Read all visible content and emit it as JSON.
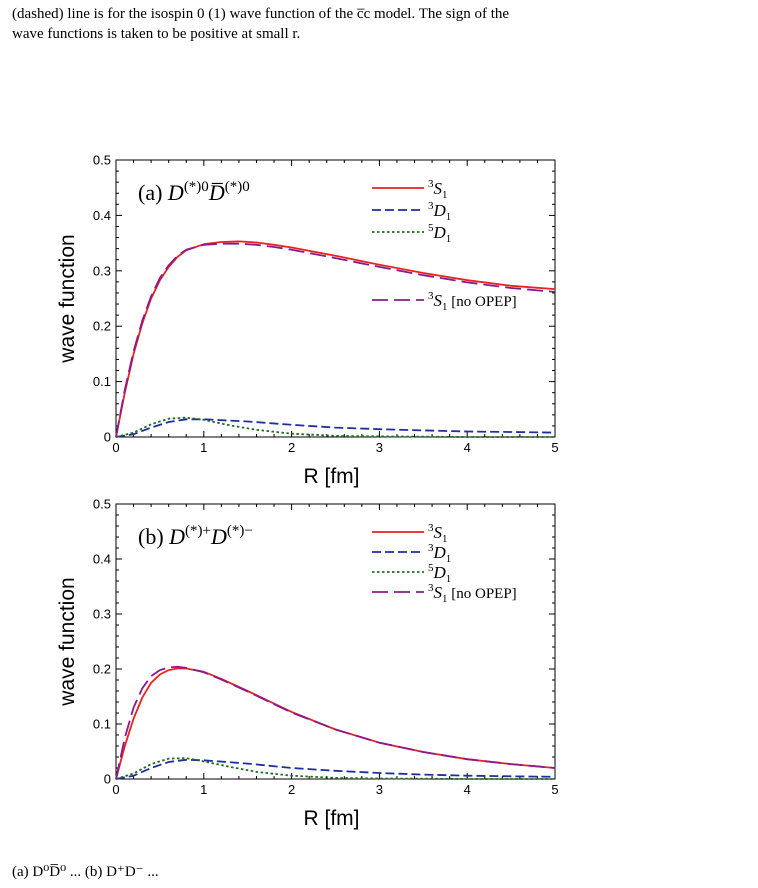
{
  "caption_top": {
    "line1": "(dashed) line is for the isospin 0 (1) wave function of the c̅c model. The sign of the",
    "line2": "wave functions is taken to be positive at small r."
  },
  "caption_bottom": {
    "text": "(a) D⁰D̅⁰ ... (b) D⁺D⁻ ..."
  },
  "chart_data": [
    {
      "type": "line",
      "panel_label": "(a)",
      "title_math": "D(*)0D̅(*)0",
      "xlabel": "R [fm]",
      "ylabel": "wave function",
      "xlim": [
        0,
        5
      ],
      "ylim": [
        0,
        0.5
      ],
      "xticks": [
        "0",
        "1",
        "2",
        "3",
        "4",
        "5"
      ],
      "yticks": [
        "0",
        "0.1",
        "0.2",
        "0.3",
        "0.4",
        "0.5"
      ],
      "legend_position": "top-right",
      "series": [
        {
          "name": "3S1",
          "color": "#e8221f",
          "dash": "solid",
          "x": [
            0,
            0.1,
            0.2,
            0.3,
            0.4,
            0.5,
            0.6,
            0.7,
            0.8,
            1.0,
            1.2,
            1.4,
            1.6,
            1.8,
            2.0,
            2.5,
            3.0,
            3.5,
            4.0,
            4.5,
            5.0
          ],
          "y": [
            0,
            0.08,
            0.15,
            0.205,
            0.25,
            0.283,
            0.307,
            0.325,
            0.337,
            0.348,
            0.352,
            0.353,
            0.351,
            0.347,
            0.342,
            0.327,
            0.311,
            0.296,
            0.283,
            0.273,
            0.267
          ]
        },
        {
          "name": "3D1",
          "color": "#1f2ea0",
          "dash": "dashed",
          "x": [
            0,
            0.2,
            0.4,
            0.6,
            0.8,
            1.0,
            1.5,
            2.0,
            2.5,
            3.0,
            3.5,
            4.0,
            4.5,
            5.0
          ],
          "y": [
            0,
            0.005,
            0.017,
            0.027,
            0.032,
            0.032,
            0.028,
            0.022,
            0.017,
            0.014,
            0.012,
            0.01,
            0.009,
            0.008
          ]
        },
        {
          "name": "5D1",
          "color": "#1f6b1f",
          "dash": "dotted",
          "x": [
            0,
            0.2,
            0.4,
            0.6,
            0.8,
            1.0,
            1.3,
            1.6,
            2.0,
            2.5,
            3.0,
            4.0,
            5.0
          ],
          "y": [
            0,
            0.008,
            0.023,
            0.033,
            0.035,
            0.031,
            0.021,
            0.013,
            0.006,
            0.002,
            0.001,
            0.0,
            0.0
          ]
        },
        {
          "name": "3S1 [no OPEP]",
          "color": "#8a1a8e",
          "dash": "longdash",
          "x": [
            0,
            0.1,
            0.2,
            0.3,
            0.4,
            0.5,
            0.6,
            0.7,
            0.8,
            1.0,
            1.2,
            1.4,
            1.6,
            1.8,
            2.0,
            2.5,
            3.0,
            3.5,
            4.0,
            4.5,
            5.0
          ],
          "y": [
            0,
            0.085,
            0.155,
            0.21,
            0.254,
            0.287,
            0.31,
            0.327,
            0.338,
            0.347,
            0.349,
            0.349,
            0.347,
            0.343,
            0.338,
            0.323,
            0.307,
            0.292,
            0.279,
            0.269,
            0.262
          ]
        }
      ],
      "legend": [
        {
          "series": "3S1",
          "sup": "3",
          "main": "S",
          "sub": "1",
          "extra": ""
        },
        {
          "series": "3D1",
          "sup": "3",
          "main": "D",
          "sub": "1",
          "extra": ""
        },
        {
          "series": "5D1",
          "sup": "5",
          "main": "D",
          "sub": "1",
          "extra": ""
        },
        {
          "series": "3S1 [no OPEP]",
          "sup": "3",
          "main": "S",
          "sub": "1",
          "extra": " [no OPEP]"
        }
      ]
    },
    {
      "type": "line",
      "panel_label": "(b)",
      "title_math": "D(*)+D(*)−",
      "xlabel": "R [fm]",
      "ylabel": "wave function",
      "xlim": [
        0,
        5
      ],
      "ylim": [
        0,
        0.5
      ],
      "xticks": [
        "0",
        "1",
        "2",
        "3",
        "4",
        "5"
      ],
      "yticks": [
        "0",
        "0.1",
        "0.2",
        "0.3",
        "0.4",
        "0.5"
      ],
      "legend_position": "top-right",
      "series": [
        {
          "name": "3S1",
          "color": "#e8221f",
          "dash": "solid",
          "x": [
            0,
            0.1,
            0.2,
            0.3,
            0.4,
            0.5,
            0.6,
            0.7,
            0.8,
            1.0,
            1.2,
            1.5,
            2.0,
            2.5,
            3.0,
            3.5,
            4.0,
            4.5,
            5.0
          ],
          "y": [
            0,
            0.06,
            0.11,
            0.148,
            0.175,
            0.19,
            0.198,
            0.201,
            0.201,
            0.195,
            0.182,
            0.16,
            0.122,
            0.09,
            0.066,
            0.049,
            0.036,
            0.027,
            0.02
          ]
        },
        {
          "name": "3D1",
          "color": "#1f2ea0",
          "dash": "dashed",
          "x": [
            0,
            0.2,
            0.4,
            0.6,
            0.8,
            1.0,
            1.5,
            2.0,
            2.5,
            3.0,
            3.5,
            4.0,
            4.5,
            5.0
          ],
          "y": [
            0,
            0.006,
            0.02,
            0.031,
            0.035,
            0.034,
            0.028,
            0.02,
            0.015,
            0.011,
            0.008,
            0.006,
            0.005,
            0.004
          ]
        },
        {
          "name": "5D1",
          "color": "#1f6b1f",
          "dash": "dotted",
          "x": [
            0,
            0.2,
            0.4,
            0.6,
            0.8,
            1.0,
            1.3,
            1.6,
            2.0,
            2.5,
            3.0,
            4.0,
            5.0
          ],
          "y": [
            0,
            0.01,
            0.027,
            0.037,
            0.038,
            0.032,
            0.022,
            0.013,
            0.006,
            0.002,
            0.001,
            0.0,
            0.0
          ]
        },
        {
          "name": "3S1 [no OPEP]",
          "color": "#8a1a8e",
          "dash": "longdash",
          "x": [
            0,
            0.1,
            0.2,
            0.3,
            0.4,
            0.5,
            0.6,
            0.7,
            0.8,
            1.0,
            1.2,
            1.5,
            2.0,
            2.5,
            3.0,
            3.5,
            4.0,
            4.5,
            5.0
          ],
          "y": [
            0,
            0.075,
            0.13,
            0.165,
            0.187,
            0.198,
            0.203,
            0.204,
            0.202,
            0.194,
            0.181,
            0.159,
            0.121,
            0.09,
            0.066,
            0.049,
            0.036,
            0.027,
            0.02
          ]
        }
      ],
      "legend": [
        {
          "series": "3S1",
          "sup": "3",
          "main": "S",
          "sub": "1",
          "extra": ""
        },
        {
          "series": "3D1",
          "sup": "3",
          "main": "D",
          "sub": "1",
          "extra": ""
        },
        {
          "series": "5D1",
          "sup": "5",
          "main": "D",
          "sub": "1",
          "extra": ""
        },
        {
          "series": "3S1 [no OPEP]",
          "sup": "3",
          "main": "S",
          "sub": "1",
          "extra": " [no OPEP]"
        }
      ]
    }
  ]
}
